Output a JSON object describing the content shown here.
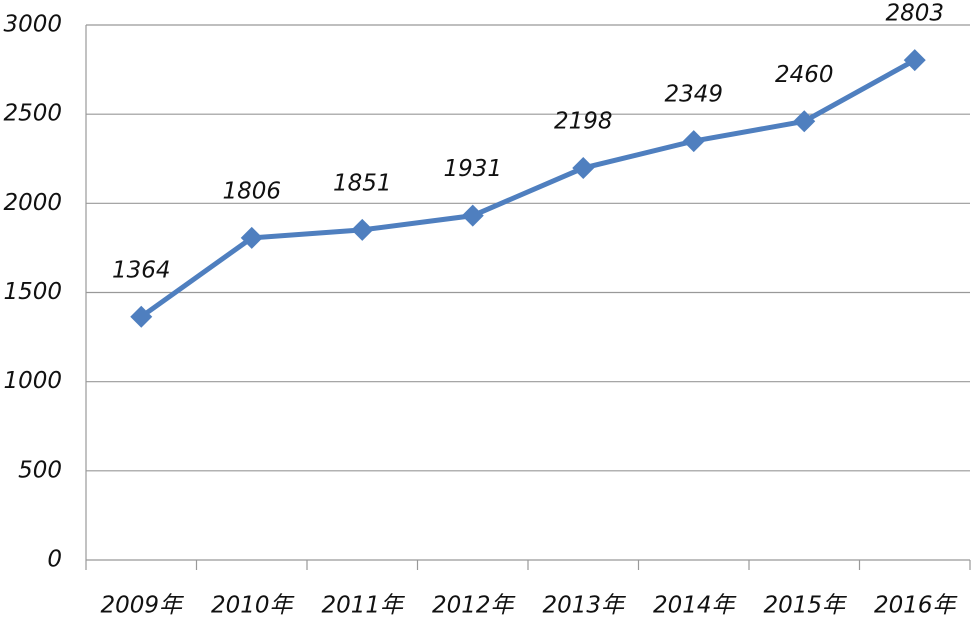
{
  "chart_data": {
    "type": "line",
    "categories": [
      "2009年",
      "2010年",
      "2011年",
      "2012年",
      "2013年",
      "2014年",
      "2015年",
      "2016年"
    ],
    "values": [
      1364,
      1806,
      1851,
      1931,
      2198,
      2349,
      2460,
      2803
    ],
    "color": "#4f7fbf",
    "ylim": [
      0,
      3000
    ],
    "yticks": [
      0,
      500,
      1000,
      1500,
      2000,
      2500,
      3000
    ],
    "grid": true
  }
}
